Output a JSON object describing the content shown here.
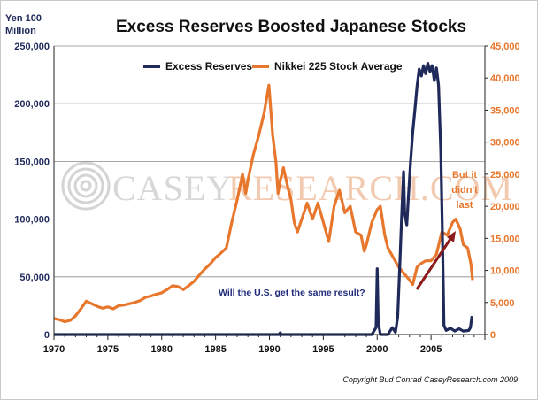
{
  "chart_data": {
    "type": "line",
    "title": "Excess Reserves Boosted Japanese Stocks",
    "left_axis": {
      "label_line1": "Yen 100",
      "label_line2": "Million",
      "range": [
        0,
        250000
      ],
      "ticks": [
        "0",
        "50,000",
        "100,000",
        "150,000",
        "200,000",
        "250,000"
      ]
    },
    "right_axis": {
      "range": [
        0,
        45000
      ],
      "ticks": [
        "0",
        "5,000",
        "10,000",
        "15,000",
        "20,000",
        "25,000",
        "30,000",
        "35,000",
        "40,000",
        "45,000"
      ]
    },
    "x_axis": {
      "range": [
        1970,
        2010
      ],
      "ticks": [
        "1970",
        "1975",
        "1980",
        "1985",
        "1990",
        "1995",
        "2000",
        "2005"
      ]
    },
    "grid": "horizontal",
    "legend_placement": "top",
    "series": [
      {
        "name": "Excess Reserves",
        "axis": "left",
        "color": "#1f2a5a",
        "points": [
          [
            1970.0,
            0
          ],
          [
            1990.9,
            0
          ],
          [
            1991.0,
            1500
          ],
          [
            1991.1,
            0
          ],
          [
            1998.0,
            0
          ],
          [
            1999.5,
            0
          ],
          [
            1999.9,
            6000
          ],
          [
            2000.0,
            57000
          ],
          [
            2000.1,
            10000
          ],
          [
            2000.3,
            0
          ],
          [
            2001.0,
            0
          ],
          [
            2001.4,
            6000
          ],
          [
            2001.7,
            2000
          ],
          [
            2001.9,
            15000
          ],
          [
            2002.1,
            60000
          ],
          [
            2002.3,
            110000
          ],
          [
            2002.45,
            141000
          ],
          [
            2002.55,
            105000
          ],
          [
            2002.75,
            95000
          ],
          [
            2002.9,
            120000
          ],
          [
            2003.1,
            150000
          ],
          [
            2003.3,
            175000
          ],
          [
            2003.5,
            195000
          ],
          [
            2003.7,
            215000
          ],
          [
            2003.9,
            230000
          ],
          [
            2004.1,
            224000
          ],
          [
            2004.3,
            233000
          ],
          [
            2004.5,
            226000
          ],
          [
            2004.7,
            235000
          ],
          [
            2004.9,
            228000
          ],
          [
            2005.1,
            233000
          ],
          [
            2005.3,
            220000
          ],
          [
            2005.5,
            231000
          ],
          [
            2005.7,
            216000
          ],
          [
            2005.9,
            160000
          ],
          [
            2006.05,
            90000
          ],
          [
            2006.2,
            8000
          ],
          [
            2006.4,
            3500
          ],
          [
            2006.8,
            5500
          ],
          [
            2007.2,
            3000
          ],
          [
            2007.6,
            5000
          ],
          [
            2008.0,
            3000
          ],
          [
            2008.5,
            3500
          ],
          [
            2008.65,
            6000
          ],
          [
            2008.8,
            16000
          ]
        ]
      },
      {
        "name": "Nikkei 225 Stock Average",
        "axis": "right",
        "color": "#e8772e",
        "points": [
          [
            1970.0,
            2500
          ],
          [
            1970.5,
            2300
          ],
          [
            1971.0,
            2000
          ],
          [
            1971.5,
            2200
          ],
          [
            1972.0,
            2900
          ],
          [
            1972.5,
            4000
          ],
          [
            1973.0,
            5200
          ],
          [
            1973.5,
            4800
          ],
          [
            1974.0,
            4400
          ],
          [
            1974.5,
            4100
          ],
          [
            1975.0,
            4300
          ],
          [
            1975.5,
            4000
          ],
          [
            1976.0,
            4500
          ],
          [
            1976.5,
            4600
          ],
          [
            1977.0,
            4800
          ],
          [
            1977.5,
            5000
          ],
          [
            1978.0,
            5300
          ],
          [
            1978.5,
            5800
          ],
          [
            1979.0,
            6000
          ],
          [
            1979.5,
            6300
          ],
          [
            1980.0,
            6500
          ],
          [
            1980.5,
            7000
          ],
          [
            1981.0,
            7600
          ],
          [
            1981.5,
            7500
          ],
          [
            1982.0,
            7000
          ],
          [
            1982.5,
            7600
          ],
          [
            1983.0,
            8300
          ],
          [
            1983.5,
            9300
          ],
          [
            1984.0,
            10200
          ],
          [
            1984.5,
            11000
          ],
          [
            1985.0,
            12000
          ],
          [
            1985.5,
            12700
          ],
          [
            1986.0,
            13500
          ],
          [
            1986.5,
            17500
          ],
          [
            1987.0,
            21000
          ],
          [
            1987.5,
            25000
          ],
          [
            1987.8,
            22000
          ],
          [
            1988.0,
            24000
          ],
          [
            1988.5,
            28000
          ],
          [
            1989.0,
            31000
          ],
          [
            1989.5,
            34500
          ],
          [
            1989.95,
            38900
          ],
          [
            1990.3,
            31000
          ],
          [
            1990.6,
            27000
          ],
          [
            1990.8,
            22000
          ],
          [
            1991.0,
            24000
          ],
          [
            1991.3,
            26000
          ],
          [
            1991.7,
            23000
          ],
          [
            1992.0,
            21000
          ],
          [
            1992.3,
            17500
          ],
          [
            1992.6,
            16000
          ],
          [
            1993.0,
            18000
          ],
          [
            1993.5,
            20500
          ],
          [
            1994.0,
            18000
          ],
          [
            1994.5,
            20500
          ],
          [
            1995.0,
            17500
          ],
          [
            1995.5,
            14500
          ],
          [
            1996.0,
            20000
          ],
          [
            1996.5,
            22500
          ],
          [
            1997.0,
            19000
          ],
          [
            1997.5,
            20000
          ],
          [
            1998.0,
            16000
          ],
          [
            1998.5,
            15500
          ],
          [
            1998.8,
            13000
          ],
          [
            1999.0,
            14000
          ],
          [
            1999.5,
            17500
          ],
          [
            2000.0,
            19500
          ],
          [
            2000.3,
            20000
          ],
          [
            2000.7,
            15500
          ],
          [
            2001.0,
            13500
          ],
          [
            2001.5,
            12000
          ],
          [
            2002.0,
            10500
          ],
          [
            2002.5,
            9500
          ],
          [
            2003.0,
            8500
          ],
          [
            2003.3,
            7800
          ],
          [
            2003.7,
            10500
          ],
          [
            2004.0,
            11000
          ],
          [
            2004.5,
            11500
          ],
          [
            2005.0,
            11500
          ],
          [
            2005.5,
            12500
          ],
          [
            2006.0,
            16000
          ],
          [
            2006.5,
            15500
          ],
          [
            2007.0,
            17500
          ],
          [
            2007.3,
            18000
          ],
          [
            2007.7,
            16500
          ],
          [
            2008.0,
            14000
          ],
          [
            2008.4,
            13500
          ],
          [
            2008.7,
            11000
          ],
          [
            2008.85,
            8500
          ]
        ]
      }
    ],
    "annotations": {
      "same_result": "Will the U.S. get the same result?",
      "didnt_last_line1": "But it",
      "didnt_last_line2": "didn't",
      "didnt_last_line3": "last",
      "arrow_color": "#8b1a1a"
    },
    "watermark_text_left": "CASEY",
    "watermark_text_right": "RESEARCH.COM",
    "copyright": "Copyright Bud Conrad CaseyResearch.com 2009"
  }
}
